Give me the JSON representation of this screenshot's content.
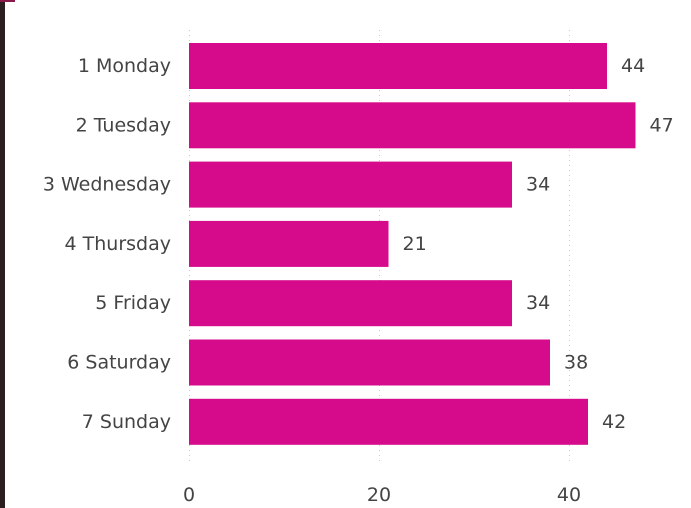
{
  "chart_data": {
    "type": "bar",
    "orientation": "horizontal",
    "categories": [
      "1 Monday",
      "2 Tuesday",
      "3 Wednesday",
      "4 Thursday",
      "5 Friday",
      "6 Saturday",
      "7 Sunday"
    ],
    "values": [
      44,
      47,
      34,
      21,
      34,
      38,
      42
    ],
    "value_labels": [
      "44",
      "47",
      "34",
      "21",
      "34",
      "38",
      "42"
    ],
    "x_ticks": [
      "0",
      "20",
      "40"
    ],
    "x_tick_values": [
      0,
      20,
      40
    ],
    "xlim": [
      0,
      50
    ],
    "title": "",
    "xlabel": "",
    "ylabel": "",
    "grid": "vertical-dotted",
    "bar_color": "#d60b8c"
  }
}
